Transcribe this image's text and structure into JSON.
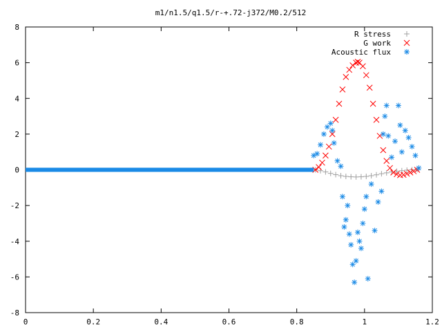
{
  "chart_data": {
    "type": "scatter",
    "title": "m1/n1.5/q1.5/r-+.72-j372/M0.2/512",
    "xlabel": "",
    "ylabel": "",
    "xlim": [
      0,
      1.2
    ],
    "ylim": [
      -8,
      8
    ],
    "xticks": [
      "0",
      "0.2",
      "0.4",
      "0.6",
      "0.8",
      "1",
      "1.2"
    ],
    "yticks": [
      "8",
      "6",
      "4",
      "2",
      "0",
      "-2",
      "-4",
      "-6",
      "-8"
    ],
    "grid": false,
    "legend_position": "top-right",
    "series": [
      {
        "name": "R stress",
        "marker": "plus",
        "color": "#a0a0a0",
        "x": [
          0.855,
          0.87,
          0.885,
          0.9,
          0.915,
          0.93,
          0.945,
          0.96,
          0.975,
          0.99,
          1.005,
          1.02,
          1.035,
          1.05,
          1.065,
          1.08,
          1.095,
          1.11,
          1.125,
          1.14,
          1.155
        ],
        "y": [
          0.0,
          -0.05,
          -0.12,
          -0.2,
          -0.27,
          -0.33,
          -0.37,
          -0.39,
          -0.4,
          -0.39,
          -0.37,
          -0.33,
          -0.28,
          -0.22,
          -0.17,
          -0.12,
          -0.08,
          -0.05,
          -0.02,
          0.0,
          0.01
        ]
      },
      {
        "name": "G work",
        "marker": "cross",
        "color": "#ff0000",
        "x": [
          0.855,
          0.865,
          0.875,
          0.885,
          0.895,
          0.905,
          0.915,
          0.925,
          0.935,
          0.945,
          0.955,
          0.965,
          0.975,
          0.98,
          0.985,
          0.995,
          1.005,
          1.015,
          1.025,
          1.035,
          1.045,
          1.055,
          1.065,
          1.075,
          1.085,
          1.095,
          1.105,
          1.115,
          1.125,
          1.135,
          1.145,
          1.155
        ],
        "y": [
          0.0,
          0.15,
          0.4,
          0.8,
          1.3,
          2.0,
          2.8,
          3.7,
          4.5,
          5.2,
          5.6,
          5.85,
          6.0,
          6.05,
          6.0,
          5.8,
          5.3,
          4.6,
          3.7,
          2.8,
          1.9,
          1.1,
          0.5,
          0.1,
          -0.15,
          -0.25,
          -0.3,
          -0.28,
          -0.22,
          -0.15,
          -0.08,
          0.0
        ]
      },
      {
        "name": "Acoustic flux",
        "marker": "star",
        "color": "#1a8ae6",
        "x": [
          0.85,
          0.86,
          0.87,
          0.88,
          0.89,
          0.9,
          0.905,
          0.91,
          0.92,
          0.93,
          0.935,
          0.94,
          0.945,
          0.95,
          0.955,
          0.96,
          0.965,
          0.97,
          0.975,
          0.98,
          0.985,
          0.99,
          0.995,
          1.0,
          1.005,
          1.01,
          1.02,
          1.03,
          1.04,
          1.05,
          1.055,
          1.06,
          1.065,
          1.07,
          1.08,
          1.09,
          1.1,
          1.105,
          1.11,
          1.12,
          1.13,
          1.14,
          1.15,
          1.16
        ],
        "y": [
          0.8,
          0.9,
          1.4,
          2.0,
          2.4,
          2.6,
          2.2,
          1.5,
          0.5,
          0.2,
          -1.5,
          -3.2,
          -2.8,
          -2.0,
          -3.6,
          -4.2,
          -5.3,
          -6.3,
          -5.1,
          -3.5,
          -4.0,
          -4.4,
          -3.0,
          -2.2,
          -1.5,
          -6.1,
          -0.8,
          -3.4,
          -1.8,
          -1.2,
          2.0,
          3.0,
          3.6,
          1.9,
          0.7,
          1.6,
          3.6,
          2.5,
          1.0,
          2.2,
          1.8,
          1.3,
          0.8,
          0.1
        ]
      },
      {
        "name": "",
        "marker": "star",
        "color": "#1a8ae6",
        "x": [
          0.0,
          0.85
        ],
        "y": [
          0.0,
          0.0
        ],
        "dense_line": true
      }
    ]
  }
}
